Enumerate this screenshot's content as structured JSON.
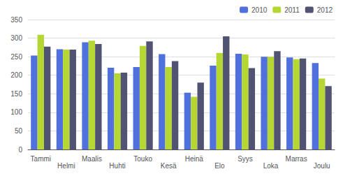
{
  "chart_data": {
    "type": "bar",
    "categories": [
      "Tammi",
      "Helmi",
      "Maalis",
      "Huhti",
      "Touko",
      "Kesä",
      "Heinä",
      "Elo",
      "Syys",
      "Loka",
      "Marras",
      "Joulu"
    ],
    "series": [
      {
        "name": "2010",
        "values": [
          253,
          270,
          289,
          220,
          222,
          257,
          153,
          226,
          258,
          250,
          248,
          233
        ]
      },
      {
        "name": "2011",
        "values": [
          309,
          269,
          293,
          205,
          279,
          222,
          142,
          260,
          256,
          250,
          243,
          191
        ]
      },
      {
        "name": "2012",
        "values": [
          277,
          269,
          284,
          207,
          291,
          238,
          180,
          305,
          219,
          265,
          245,
          171
        ]
      }
    ],
    "ylim": [
      0,
      350
    ],
    "yticks": [
      0,
      50,
      100,
      150,
      200,
      250,
      300,
      350
    ],
    "grid": true,
    "legend": "upper right"
  }
}
